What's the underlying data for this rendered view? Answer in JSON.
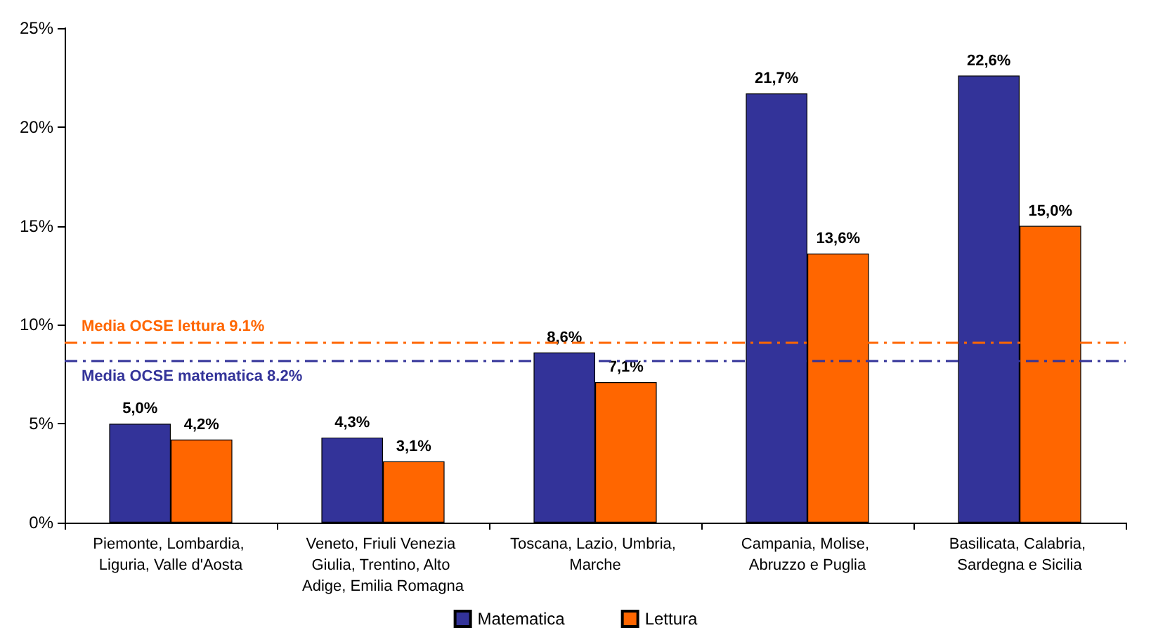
{
  "chart_data": {
    "type": "bar",
    "categories": [
      "Piemonte, Lombardia, Liguria, Valle d'Aosta",
      "Veneto, Friuli Venezia Giulia, Trentino, Alto Adige, Emilia Romagna",
      "Toscana, Lazio, Umbria, Marche",
      "Campania, Molise, Abruzzo e Puglia",
      "Basilicata, Calabria, Sardegna e Sicilia"
    ],
    "series": [
      {
        "name": "Matematica",
        "color": "#333399",
        "values": [
          5.0,
          4.3,
          8.6,
          21.7,
          22.6
        ],
        "value_labels": [
          "5,0%",
          "4,3%",
          "8,6%",
          "21,7%",
          "22,6%"
        ]
      },
      {
        "name": "Lettura",
        "color": "#ff6600",
        "values": [
          4.2,
          3.1,
          7.1,
          13.6,
          15.0
        ],
        "value_labels": [
          "4,2%",
          "3,1%",
          "7,1%",
          "13,6%",
          "15,0%"
        ]
      }
    ],
    "ylim": [
      0,
      25
    ],
    "yticks": [
      {
        "value": 0,
        "label": "0%"
      },
      {
        "value": 5,
        "label": "5%"
      },
      {
        "value": 10,
        "label": "10%"
      },
      {
        "value": 15,
        "label": "15%"
      },
      {
        "value": 20,
        "label": "20%"
      },
      {
        "value": 25,
        "label": "25%"
      }
    ],
    "ref_lines": [
      {
        "axis": "y",
        "value": 9.1,
        "label": "Media OCSE lettura 9.1%",
        "color": "#ff6600",
        "line_style": "dashdot"
      },
      {
        "axis": "y",
        "value": 8.2,
        "label": "Media OCSE matematica 8.2%",
        "color": "#333399",
        "line_style": "dashdot"
      }
    ],
    "grid": false,
    "legend": "bottom"
  }
}
